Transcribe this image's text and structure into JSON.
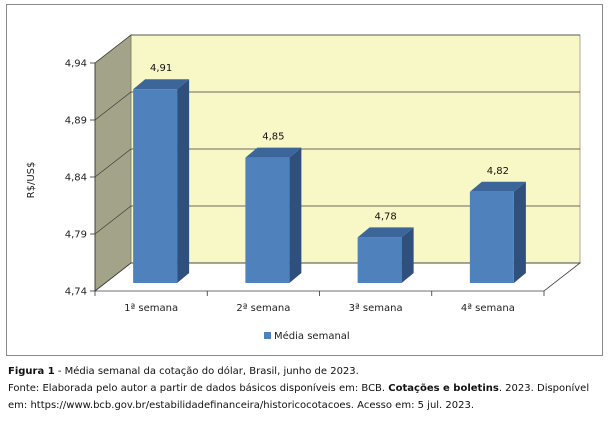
{
  "chart_data": {
    "type": "bar",
    "categories": [
      "1ª semana",
      "2ª semana",
      "3ª semana",
      "4ª semana"
    ],
    "series": [
      {
        "name": "Média semanal",
        "values": [
          4.91,
          4.85,
          4.78,
          4.82
        ]
      }
    ],
    "data_labels": [
      "4,91",
      "4,85",
      "4,78",
      "4,82"
    ],
    "ylabel": "R$/US$",
    "ylim": [
      4.74,
      4.94
    ],
    "yticks": [
      4.74,
      4.79,
      4.84,
      4.89,
      4.94
    ],
    "ytick_labels": [
      "4,74",
      "4,79",
      "4,84",
      "4,89",
      "4,94"
    ],
    "grid": true,
    "legend_position": "bottom",
    "style": "3d",
    "colors": {
      "bar_front": "#4f81bd",
      "bar_side": "#2f4f7c",
      "bar_top": "#3c6699",
      "plot_back": "#f8f8c6",
      "left_wall": "#a3a38a",
      "floor": "#ffffff"
    }
  },
  "caption": {
    "figure_label": "Figura 1",
    "figure_text": " - Média semanal da cotação do dólar, Brasil, junho de 2023.",
    "source_prefix": "Fonte: Elaborada pelo autor a partir de dados básicos disponíveis em: BCB. ",
    "source_bold": "Cotações e boletins",
    "source_suffix": ". 2023. Disponível em: https://www.bcb.gov.br/estabilidadefinanceira/historicocotacoes. Acesso em: 5 jul. 2023."
  }
}
